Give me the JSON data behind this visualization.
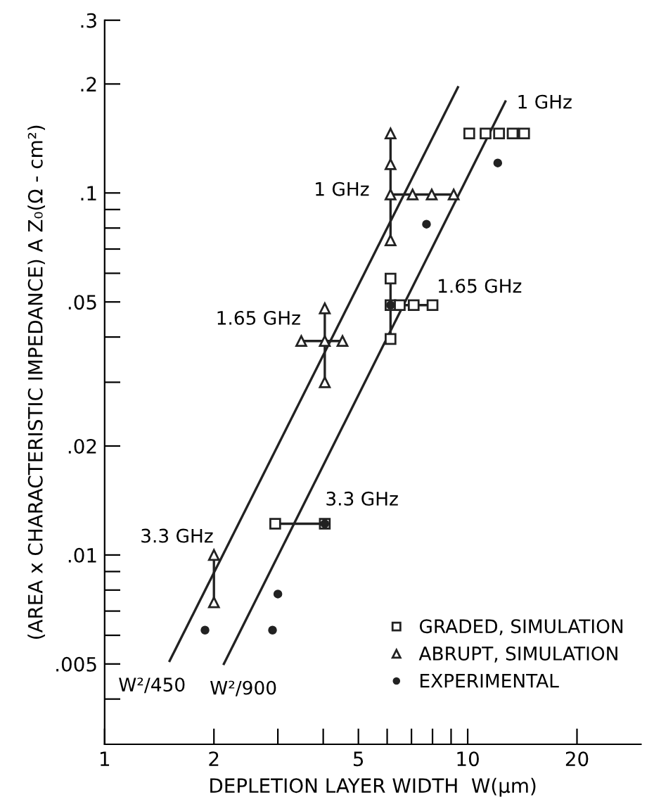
{
  "chart_data": {
    "type": "scatter",
    "xlabel": "DEPLETION LAYER WIDTH  W(μm)",
    "ylabel": "(AREA x CHARACTERISTIC IMPEDANCE) A Z₀(Ω - cm²)",
    "log": "xy",
    "grid": false,
    "legend": "bottom right",
    "xlim": [
      1,
      30
    ],
    "xticks": [
      1,
      2,
      {
        "value": 3,
        "label": null
      },
      {
        "value": 4,
        "label": null
      },
      5,
      {
        "value": 6,
        "label": null
      },
      {
        "value": 7,
        "label": null
      },
      {
        "value": 8,
        "label": null
      },
      {
        "value": 9,
        "label": null
      },
      10,
      20
    ],
    "ylim": [
      0.003,
      0.3
    ],
    "yticks": [
      {
        "value": 0.004,
        "label": null
      },
      {
        "value": 0.005,
        "label": ".005"
      },
      {
        "value": 0.006,
        "label": null
      },
      {
        "value": 0.007,
        "label": null
      },
      {
        "value": 0.008,
        "label": null
      },
      {
        "value": 0.009,
        "label": null
      },
      {
        "value": 0.01,
        "label": ".01"
      },
      {
        "value": 0.02,
        "label": ".02"
      },
      {
        "value": 0.03,
        "label": null
      },
      {
        "value": 0.04,
        "label": null
      },
      {
        "value": 0.05,
        "label": ".05"
      },
      {
        "value": 0.06,
        "label": null
      },
      {
        "value": 0.07,
        "label": null
      },
      {
        "value": 0.08,
        "label": null
      },
      {
        "value": 0.09,
        "label": null
      },
      {
        "value": 0.1,
        "label": ".1"
      },
      {
        "value": 0.2,
        "label": ".2"
      },
      {
        "value": 0.3,
        "label": ".3"
      }
    ],
    "series": [
      {
        "type": "line",
        "color": "#222222",
        "x": [
          1.51,
          9.4
        ],
        "values": [
          0.0051,
          0.196
        ],
        "marker": "none"
      },
      {
        "type": "line",
        "color": "#222222",
        "x": [
          2.13,
          12.7
        ],
        "values": [
          0.005,
          0.179
        ],
        "marker": "none"
      },
      {
        "type": "line",
        "color": "#222222",
        "x": [
          2,
          2
        ],
        "values": [
          0.01,
          0.0074
        ],
        "marker": "none"
      },
      {
        "type": "line",
        "color": "#222222",
        "x": [
          3.48,
          4.52
        ],
        "values": [
          0.039,
          0.039
        ],
        "marker": "none"
      },
      {
        "type": "line",
        "color": "#222222",
        "x": [
          4.04,
          4.04
        ],
        "values": [
          0.048,
          0.03
        ],
        "marker": "none"
      },
      {
        "type": "line",
        "color": "#222222",
        "x": [
          6.13,
          6.13
        ],
        "values": [
          0.146,
          0.074
        ],
        "marker": "none"
      },
      {
        "type": "line",
        "color": "#222222",
        "x": [
          6.13,
          9.15
        ],
        "values": [
          0.099,
          0.099
        ],
        "marker": "none"
      },
      {
        "type": "line",
        "color": "#222222",
        "x": [
          2.95,
          4.04
        ],
        "values": [
          0.0122,
          0.0122
        ],
        "marker": "none"
      },
      {
        "type": "line",
        "color": "#222222",
        "x": [
          6.13,
          6.13
        ],
        "values": [
          0.058,
          0.0395
        ],
        "marker": "none"
      },
      {
        "type": "line",
        "color": "#222222",
        "x": [
          6.13,
          8.0
        ],
        "values": [
          0.049,
          0.049
        ],
        "marker": "none"
      },
      {
        "name": "GRADED, SIMULATION",
        "color": "#222222",
        "marker": "square",
        "x": [
          2.95,
          4.04,
          6.13,
          6.13,
          6.13,
          6.5,
          7.1,
          8.0,
          10.1,
          11.2,
          12.2,
          13.3,
          14.3
        ],
        "values": [
          0.0122,
          0.0122,
          0.058,
          0.049,
          0.0395,
          0.049,
          0.049,
          0.049,
          0.146,
          0.146,
          0.146,
          0.146,
          0.146
        ]
      },
      {
        "name": "ABRUPT, SIMULATION",
        "color": "#222222",
        "marker": "triangle",
        "x": [
          2,
          2,
          3.48,
          4.04,
          4.52,
          4.04,
          4.04,
          6.13,
          6.13,
          6.13,
          6.13,
          7.05,
          7.96,
          9.15
        ],
        "values": [
          0.01,
          0.0074,
          0.039,
          0.039,
          0.039,
          0.048,
          0.03,
          0.146,
          0.12,
          0.099,
          0.074,
          0.099,
          0.099,
          0.099
        ]
      },
      {
        "name": "EXPERIMENTAL",
        "color": "#222222",
        "marker": "circle",
        "x": [
          1.89,
          2.9,
          3.0,
          4.04,
          6.13,
          7.7,
          12.1
        ],
        "values": [
          0.0062,
          0.0062,
          0.0078,
          0.0122,
          0.049,
          0.082,
          0.121
        ]
      }
    ],
    "annotations": [
      {
        "text": "3.3 GHz",
        "x": 2,
        "y": 0.01
      },
      {
        "text": "1.65 GHz",
        "x": 3.48,
        "y": 0.039
      },
      {
        "text": "1 GHz",
        "x": 6.13,
        "y": 0.099
      },
      {
        "text": "1 GHz",
        "x": 12.7,
        "y": 0.179
      },
      {
        "text": "1.65 GHz",
        "x": 8.0,
        "y": 0.049
      },
      {
        "text": "3.3 GHz",
        "x": 4.04,
        "y": 0.0122
      },
      {
        "text": "W²/450",
        "x": 1.51,
        "y": 0.0051
      },
      {
        "text": "W²/900",
        "x": 2.13,
        "y": 0.005
      }
    ]
  }
}
